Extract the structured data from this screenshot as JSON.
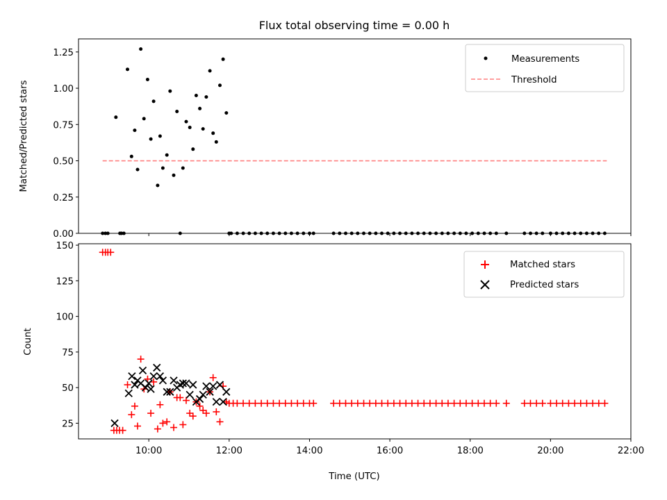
{
  "chart_data": [
    {
      "type": "scatter",
      "title": "Flux total observing time = 0.00 h",
      "xlabel": "",
      "ylabel": "Matched/Predicted stars",
      "x_unit": "hour of day (UTC)",
      "xlim": [
        8.25,
        22.0
      ],
      "ylim": [
        0,
        1.34
      ],
      "yticks": [
        0.0,
        0.25,
        0.5,
        0.75,
        1.0,
        1.25
      ],
      "ytick_labels": [
        "0.00",
        "0.25",
        "0.50",
        "0.75",
        "1.00",
        "1.25"
      ],
      "legend": {
        "position": "upper right",
        "entries": [
          "Measurements",
          "Threshold"
        ]
      },
      "colors": {
        "measurements": "#000000",
        "threshold": "#ff7f7f"
      },
      "series": [
        {
          "name": "Measurements",
          "marker": "dot",
          "x": [
            8.85,
            8.92,
            8.98,
            9.18,
            9.28,
            9.32,
            9.38,
            9.47,
            9.57,
            9.65,
            9.72,
            9.8,
            9.88,
            9.97,
            10.05,
            10.12,
            10.22,
            10.28,
            10.35,
            10.45,
            10.53,
            10.62,
            10.7,
            10.78,
            10.85,
            10.93,
            11.02,
            11.1,
            11.18,
            11.27,
            11.35,
            11.43,
            11.52,
            11.6,
            11.68,
            11.77,
            11.85,
            11.93,
            12.0,
            12.05,
            12.2,
            12.35,
            12.5,
            12.65,
            12.8,
            12.95,
            13.1,
            13.25,
            13.4,
            13.55,
            13.7,
            13.85,
            14.0,
            14.1,
            14.6,
            14.75,
            14.9,
            15.05,
            15.2,
            15.35,
            15.5,
            15.65,
            15.8,
            15.95,
            16.1,
            16.25,
            16.4,
            16.55,
            16.7,
            16.85,
            17.0,
            17.15,
            17.3,
            17.45,
            17.6,
            17.75,
            17.9,
            18.05,
            18.2,
            18.35,
            18.5,
            18.65,
            18.9,
            19.35,
            19.5,
            19.65,
            19.8,
            20.0,
            20.15,
            20.3,
            20.45,
            20.6,
            20.75,
            20.9,
            21.05,
            21.2,
            21.35
          ],
          "y": [
            0,
            0,
            0,
            0.8,
            0,
            0,
            0,
            1.13,
            0.53,
            0.71,
            0.44,
            1.27,
            0.79,
            1.06,
            0.65,
            0.91,
            0.33,
            0.67,
            0.45,
            0.54,
            0.98,
            0.4,
            0.84,
            0,
            0.45,
            0.77,
            0.73,
            0.58,
            0.95,
            0.86,
            0.72,
            0.94,
            1.12,
            0.69,
            0.63,
            1.02,
            1.2,
            0.83,
            0,
            0,
            0,
            0,
            0,
            0,
            0,
            0,
            0,
            0,
            0,
            0,
            0,
            0,
            0,
            0,
            0,
            0,
            0,
            0,
            0,
            0,
            0,
            0,
            0,
            0,
            0,
            0,
            0,
            0,
            0,
            0,
            0,
            0,
            0,
            0,
            0,
            0,
            0,
            0,
            0,
            0,
            0,
            0,
            0,
            0,
            0,
            0,
            0,
            0,
            0,
            0,
            0,
            0,
            0,
            0,
            0,
            0,
            0
          ]
        },
        {
          "name": "Threshold",
          "marker": "dashed-line",
          "x": [
            8.85,
            21.4
          ],
          "y": [
            0.5,
            0.5
          ]
        }
      ]
    },
    {
      "type": "scatter",
      "title": "",
      "xlabel": "Time (UTC)",
      "ylabel": "Count",
      "x_unit": "hour of day (UTC)",
      "xlim": [
        8.25,
        22.0
      ],
      "xticks": [
        10,
        12,
        14,
        16,
        18,
        20,
        22
      ],
      "xtick_labels": [
        "10:00",
        "12:00",
        "14:00",
        "16:00",
        "18:00",
        "20:00",
        "22:00"
      ],
      "ylim": [
        14,
        151
      ],
      "yticks": [
        25,
        50,
        75,
        100,
        125,
        150
      ],
      "ytick_labels": [
        "25",
        "50",
        "75",
        "100",
        "125",
        "150"
      ],
      "legend": {
        "position": "upper right",
        "entries": [
          "Matched stars",
          "Predicted stars"
        ]
      },
      "colors": {
        "matched": "#ff0000",
        "predicted": "#000000"
      },
      "series": [
        {
          "name": "Matched stars",
          "marker": "plus",
          "x": [
            8.85,
            8.92,
            8.98,
            9.05,
            9.13,
            9.2,
            9.27,
            9.35,
            9.47,
            9.57,
            9.65,
            9.72,
            9.8,
            9.88,
            9.97,
            10.05,
            10.12,
            10.22,
            10.28,
            10.35,
            10.45,
            10.53,
            10.62,
            10.7,
            10.78,
            10.85,
            10.93,
            11.02,
            11.1,
            11.18,
            11.27,
            11.35,
            11.43,
            11.52,
            11.6,
            11.68,
            11.77,
            11.85,
            11.93,
            12.0,
            12.1,
            12.2,
            12.35,
            12.5,
            12.65,
            12.8,
            12.95,
            13.1,
            13.25,
            13.4,
            13.55,
            13.7,
            13.85,
            14.0,
            14.1,
            14.6,
            14.75,
            14.9,
            15.05,
            15.2,
            15.35,
            15.5,
            15.65,
            15.8,
            15.95,
            16.1,
            16.25,
            16.4,
            16.55,
            16.7,
            16.85,
            17.0,
            17.15,
            17.3,
            17.45,
            17.6,
            17.75,
            17.9,
            18.05,
            18.2,
            18.35,
            18.5,
            18.65,
            18.9,
            19.35,
            19.5,
            19.65,
            19.8,
            20.0,
            20.15,
            20.3,
            20.45,
            20.6,
            20.75,
            20.9,
            21.05,
            21.2,
            21.35
          ],
          "y": [
            145,
            145,
            145,
            145,
            20,
            20,
            20,
            20,
            52,
            31,
            37,
            23,
            70,
            49,
            56,
            32,
            54,
            21,
            38,
            25,
            26,
            47,
            22,
            43,
            43,
            24,
            41,
            32,
            30,
            40,
            37,
            34,
            32,
            47,
            57,
            33,
            26,
            51,
            40,
            39,
            39,
            39,
            39,
            39,
            39,
            39,
            39,
            39,
            39,
            39,
            39,
            39,
            39,
            39,
            39,
            39,
            39,
            39,
            39,
            39,
            39,
            39,
            39,
            39,
            39,
            39,
            39,
            39,
            39,
            39,
            39,
            39,
            39,
            39,
            39,
            39,
            39,
            39,
            39,
            39,
            39,
            39,
            39,
            39,
            39,
            39,
            39,
            39,
            39,
            39,
            39,
            39,
            39,
            39,
            39,
            39,
            39,
            39
          ]
        },
        {
          "name": "Predicted stars",
          "marker": "x",
          "x": [
            9.15,
            9.5,
            9.58,
            9.65,
            9.72,
            9.8,
            9.85,
            9.92,
            10.0,
            10.05,
            10.12,
            10.2,
            10.28,
            10.35,
            10.45,
            10.53,
            10.62,
            10.7,
            10.78,
            10.85,
            10.93,
            11.02,
            11.1,
            11.18,
            11.27,
            11.35,
            11.43,
            11.52,
            11.6,
            11.68,
            11.77,
            11.85,
            11.93
          ],
          "y": [
            25,
            46,
            58,
            52,
            55,
            53,
            62,
            50,
            53,
            49,
            58,
            64,
            58,
            55,
            47,
            47,
            55,
            50,
            52,
            53,
            53,
            45,
            52,
            40,
            42,
            45,
            51,
            47,
            51,
            40,
            52,
            40,
            47
          ]
        }
      ]
    }
  ]
}
